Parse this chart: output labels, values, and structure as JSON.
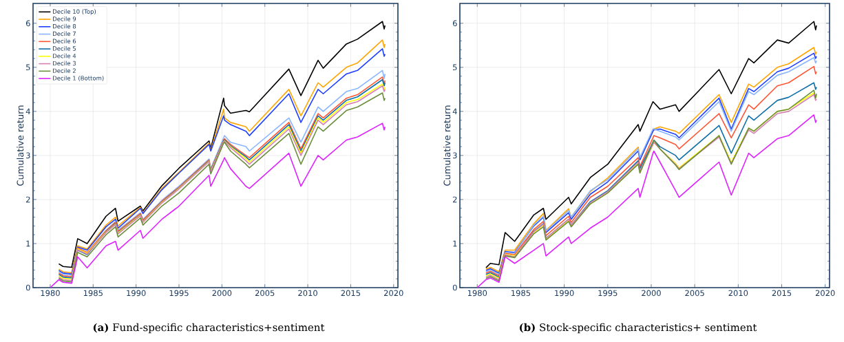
{
  "chart_data": [
    {
      "type": "line",
      "title": "**(a)** Fund-specific characteristics+sentiment",
      "ylabel": "Cumulative return",
      "xlim": [
        1978,
        2020.5
      ],
      "ylim": [
        0,
        6.45
      ],
      "xticks": [
        1980,
        1985,
        1990,
        1995,
        2000,
        2005,
        2010,
        2015,
        2020
      ],
      "yticks": [
        0,
        1,
        2,
        3,
        4,
        5,
        6
      ],
      "grid": true,
      "legend": "top left",
      "x": [
        1980.0,
        1981.0,
        1981.5,
        1982.5,
        1983.2,
        1984.3,
        1986.5,
        1987.6,
        1987.9,
        1990.5,
        1990.8,
        1993.0,
        1995.0,
        1998.5,
        1998.7,
        2000.2,
        2000.3,
        2001.0,
        2002.8,
        2003.2,
        2007.8,
        2009.2,
        2011.2,
        2011.8,
        2014.5,
        2015.8,
        2018.7,
        2018.9,
        2019.0
      ],
      "series": [
        {
          "name": "Decile 10 (Top)",
          "color": "#000000",
          "values": [
            null,
            0.54,
            0.48,
            0.46,
            1.11,
            1.0,
            1.62,
            1.8,
            1.51,
            1.85,
            1.74,
            2.31,
            2.71,
            3.33,
            3.16,
            4.3,
            4.13,
            3.96,
            4.02,
            3.99,
            4.96,
            4.36,
            5.16,
            4.98,
            5.53,
            5.64,
            6.04,
            5.87,
            5.95
          ]
        },
        {
          "name": "Decile 9",
          "color": "#ffa500",
          "values": [
            null,
            0.42,
            0.36,
            0.34,
            0.95,
            0.88,
            1.42,
            1.6,
            1.4,
            1.82,
            1.7,
            2.25,
            2.62,
            3.28,
            3.12,
            4.05,
            3.85,
            3.75,
            3.65,
            3.55,
            4.5,
            3.9,
            4.65,
            4.55,
            5.0,
            5.1,
            5.62,
            5.45,
            5.53
          ]
        },
        {
          "name": "Decile 8",
          "color": "#1f3fff",
          "values": [
            null,
            0.39,
            0.33,
            0.31,
            0.92,
            0.85,
            1.38,
            1.55,
            1.35,
            1.8,
            1.68,
            2.22,
            2.6,
            3.25,
            3.1,
            3.9,
            3.8,
            3.7,
            3.55,
            3.45,
            4.4,
            3.75,
            4.5,
            4.4,
            4.85,
            4.93,
            5.42,
            5.25,
            5.3
          ]
        },
        {
          "name": "Decile 7",
          "color": "#87b5ff",
          "values": [
            null,
            0.36,
            0.3,
            0.28,
            0.88,
            0.8,
            1.3,
            1.5,
            1.3,
            1.7,
            1.55,
            1.98,
            2.3,
            2.92,
            2.7,
            3.4,
            3.45,
            3.3,
            3.2,
            3.1,
            3.85,
            3.3,
            4.1,
            4.0,
            4.45,
            4.52,
            4.93,
            4.75,
            4.85
          ]
        },
        {
          "name": "Decile 6",
          "color": "#ff5533",
          "values": [
            null,
            0.33,
            0.27,
            0.25,
            0.9,
            0.8,
            1.29,
            1.48,
            1.28,
            1.68,
            1.53,
            1.96,
            2.28,
            2.9,
            2.68,
            3.35,
            3.38,
            3.25,
            3.0,
            2.95,
            3.75,
            3.15,
            3.95,
            3.85,
            4.3,
            4.38,
            4.78,
            4.62,
            4.7
          ]
        },
        {
          "name": "Decile 5",
          "color": "#0f6fa8",
          "values": [
            null,
            0.3,
            0.24,
            0.22,
            0.85,
            0.75,
            1.27,
            1.45,
            1.25,
            1.65,
            1.5,
            1.94,
            2.26,
            2.88,
            2.66,
            3.33,
            3.35,
            3.22,
            2.97,
            2.9,
            3.7,
            3.1,
            3.9,
            3.8,
            4.25,
            4.33,
            4.72,
            4.58,
            4.65
          ]
        },
        {
          "name": "Decile 4",
          "color": "#ffff00",
          "values": [
            null,
            0.27,
            0.21,
            0.19,
            0.88,
            0.78,
            1.26,
            1.44,
            1.24,
            1.64,
            1.49,
            1.93,
            2.25,
            2.87,
            2.65,
            3.31,
            3.33,
            3.2,
            2.93,
            2.85,
            3.65,
            3.05,
            3.85,
            3.75,
            4.2,
            4.27,
            4.62,
            4.5,
            4.55
          ]
        },
        {
          "name": "Decile 3",
          "color": "#d67fb0",
          "values": [
            null,
            0.24,
            0.18,
            0.16,
            0.86,
            0.76,
            1.25,
            1.43,
            1.22,
            1.63,
            1.48,
            1.92,
            2.24,
            2.86,
            2.64,
            3.3,
            3.32,
            3.18,
            2.88,
            2.8,
            3.6,
            3.0,
            3.8,
            3.7,
            4.15,
            4.22,
            4.58,
            4.45,
            4.5
          ]
        },
        {
          "name": "Decile 2",
          "color": "#6b8e3e",
          "values": [
            null,
            0.21,
            0.15,
            0.13,
            0.8,
            0.7,
            1.2,
            1.38,
            1.15,
            1.58,
            1.42,
            1.85,
            2.15,
            2.8,
            2.58,
            3.28,
            3.3,
            3.1,
            2.8,
            2.72,
            3.5,
            2.8,
            3.65,
            3.55,
            4.02,
            4.1,
            4.42,
            4.25,
            4.3
          ]
        },
        {
          "name": "Decile 1 (Bottom)",
          "color": "#dd22ff",
          "values": [
            0.0,
            0.18,
            0.12,
            0.1,
            0.7,
            0.45,
            0.95,
            1.05,
            0.85,
            1.3,
            1.12,
            1.55,
            1.85,
            2.55,
            2.3,
            2.9,
            2.95,
            2.7,
            2.3,
            2.25,
            3.05,
            2.3,
            3.0,
            2.9,
            3.35,
            3.42,
            3.73,
            3.58,
            3.65
          ]
        }
      ]
    },
    {
      "type": "line",
      "title": "**(b)** Stock-specific characteristics+ sentiment",
      "ylabel": "Cumulative return",
      "xlim": [
        1978,
        2020.5
      ],
      "ylim": [
        0,
        6.45
      ],
      "xticks": [
        1980,
        1985,
        1990,
        1995,
        2000,
        2005,
        2010,
        2015,
        2020
      ],
      "yticks": [
        0,
        1,
        2,
        3,
        4,
        5,
        6
      ],
      "grid": true,
      "x": [
        1980.0,
        1981.0,
        1981.5,
        1982.5,
        1983.2,
        1984.3,
        1986.5,
        1987.6,
        1987.9,
        1990.5,
        1990.8,
        1993.0,
        1995.0,
        1998.5,
        1998.7,
        2000.2,
        2000.3,
        2001.0,
        2002.8,
        2003.2,
        2007.8,
        2009.2,
        2011.2,
        2011.8,
        2014.5,
        2015.8,
        2018.7,
        2018.9,
        2019.0
      ],
      "series": [
        {
          "color": "#000000",
          "values": [
            null,
            0.45,
            0.55,
            0.52,
            1.25,
            1.05,
            1.65,
            1.8,
            1.55,
            2.05,
            1.9,
            2.5,
            2.8,
            3.7,
            3.55,
            4.22,
            4.2,
            4.05,
            4.15,
            4.0,
            4.95,
            4.4,
            5.2,
            5.1,
            5.62,
            5.55,
            6.04,
            5.85,
            5.95
          ]
        },
        {
          "color": "#ffa500",
          "values": [
            null,
            0.42,
            0.46,
            0.36,
            0.85,
            0.85,
            1.45,
            1.68,
            1.3,
            1.79,
            1.6,
            2.18,
            2.49,
            3.19,
            2.95,
            3.55,
            3.6,
            3.65,
            3.55,
            3.5,
            4.38,
            3.75,
            4.62,
            4.55,
            5.0,
            5.08,
            5.45,
            5.3,
            5.35
          ]
        },
        {
          "color": "#1f3fff",
          "values": [
            null,
            0.39,
            0.43,
            0.33,
            0.82,
            0.8,
            1.4,
            1.6,
            1.25,
            1.7,
            1.55,
            2.12,
            2.4,
            3.1,
            2.9,
            3.55,
            3.58,
            3.6,
            3.48,
            3.4,
            4.3,
            3.6,
            4.52,
            4.45,
            4.9,
            4.98,
            5.32,
            5.2,
            5.25
          ]
        },
        {
          "color": "#87b5ff",
          "values": [
            null,
            0.36,
            0.4,
            0.3,
            0.8,
            0.78,
            1.42,
            1.62,
            1.28,
            1.75,
            1.6,
            2.2,
            2.45,
            3.15,
            2.95,
            3.6,
            3.6,
            3.55,
            3.42,
            3.35,
            4.22,
            3.55,
            4.45,
            4.38,
            4.82,
            4.9,
            5.22,
            5.1,
            5.15
          ]
        },
        {
          "color": "#ff5533",
          "values": [
            null,
            0.33,
            0.37,
            0.27,
            0.78,
            0.75,
            1.32,
            1.5,
            1.18,
            1.62,
            1.48,
            2.05,
            2.3,
            2.95,
            2.75,
            3.4,
            3.45,
            3.4,
            3.25,
            3.15,
            3.95,
            3.4,
            4.15,
            4.05,
            4.58,
            4.65,
            5.02,
            4.85,
            4.9
          ]
        },
        {
          "color": "#0f6fa8",
          "values": [
            null,
            0.3,
            0.34,
            0.24,
            0.75,
            0.7,
            1.28,
            1.45,
            1.12,
            1.55,
            1.42,
            1.95,
            2.2,
            2.88,
            2.7,
            3.3,
            3.35,
            3.2,
            3.0,
            2.9,
            3.68,
            3.05,
            3.9,
            3.8,
            4.25,
            4.32,
            4.65,
            4.5,
            4.55
          ]
        },
        {
          "color": "#ffff00",
          "values": [
            null,
            0.27,
            0.31,
            0.21,
            0.76,
            0.72,
            1.25,
            1.42,
            1.1,
            1.52,
            1.4,
            1.9,
            2.15,
            2.82,
            2.62,
            3.25,
            3.3,
            3.15,
            2.82,
            2.72,
            3.45,
            2.85,
            3.62,
            3.55,
            4.0,
            4.05,
            4.42,
            4.3,
            4.35
          ]
        },
        {
          "color": "#d67fb0",
          "values": [
            null,
            0.24,
            0.28,
            0.18,
            0.75,
            0.7,
            1.27,
            1.44,
            1.12,
            1.55,
            1.42,
            1.93,
            2.18,
            2.85,
            2.65,
            3.25,
            3.3,
            3.15,
            2.8,
            2.7,
            3.42,
            2.82,
            3.58,
            3.5,
            3.95,
            4.0,
            4.38,
            4.25,
            4.28
          ]
        },
        {
          "color": "#6b8e3e",
          "values": [
            null,
            0.21,
            0.25,
            0.15,
            0.72,
            0.68,
            1.22,
            1.38,
            1.08,
            1.5,
            1.38,
            1.9,
            2.15,
            2.8,
            2.6,
            3.3,
            3.35,
            3.15,
            2.78,
            2.68,
            3.45,
            2.8,
            3.62,
            3.55,
            4.0,
            4.05,
            4.48,
            4.3,
            4.4
          ]
        },
        {
          "color": "#dd22ff",
          "values": [
            0.0,
            0.18,
            0.22,
            0.12,
            0.7,
            0.55,
            0.85,
            1.0,
            0.72,
            1.15,
            1.0,
            1.35,
            1.6,
            2.25,
            2.05,
            3.05,
            3.1,
            2.85,
            2.2,
            2.05,
            2.85,
            2.1,
            3.05,
            2.95,
            3.38,
            3.45,
            3.92,
            3.75,
            3.8
          ]
        }
      ]
    }
  ]
}
